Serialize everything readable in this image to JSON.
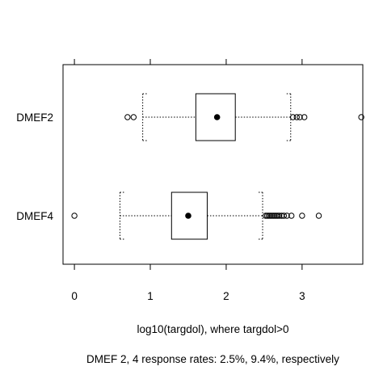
{
  "chart_data": {
    "type": "box",
    "orientation": "horizontal",
    "title": "",
    "xlabel": "log10(targdol), where targdol>0",
    "caption": "DMEF 2, 4 response rates: 2.5%, 9.4%, respectively",
    "xlim": [
      -0.15,
      3.8
    ],
    "xticks": [
      0,
      1,
      2,
      3
    ],
    "xtick_labels": [
      "0",
      "1",
      "2",
      "3"
    ],
    "grid": false,
    "series": [
      {
        "name": "DMEF2",
        "whisker_low": 0.9,
        "q1": 1.6,
        "median": 1.88,
        "q3": 2.12,
        "whisker_high": 2.85,
        "outliers": [
          0.7,
          0.78,
          2.88,
          2.93,
          2.97,
          3.03,
          3.78
        ]
      },
      {
        "name": "DMEF4",
        "whisker_low": 0.6,
        "q1": 1.28,
        "median": 1.5,
        "q3": 1.75,
        "whisker_high": 2.48,
        "outliers": [
          0.0,
          2.52,
          2.54,
          2.56,
          2.58,
          2.6,
          2.62,
          2.64,
          2.66,
          2.68,
          2.7,
          2.73,
          2.76,
          2.8,
          2.86,
          3.0,
          3.22
        ]
      }
    ]
  }
}
